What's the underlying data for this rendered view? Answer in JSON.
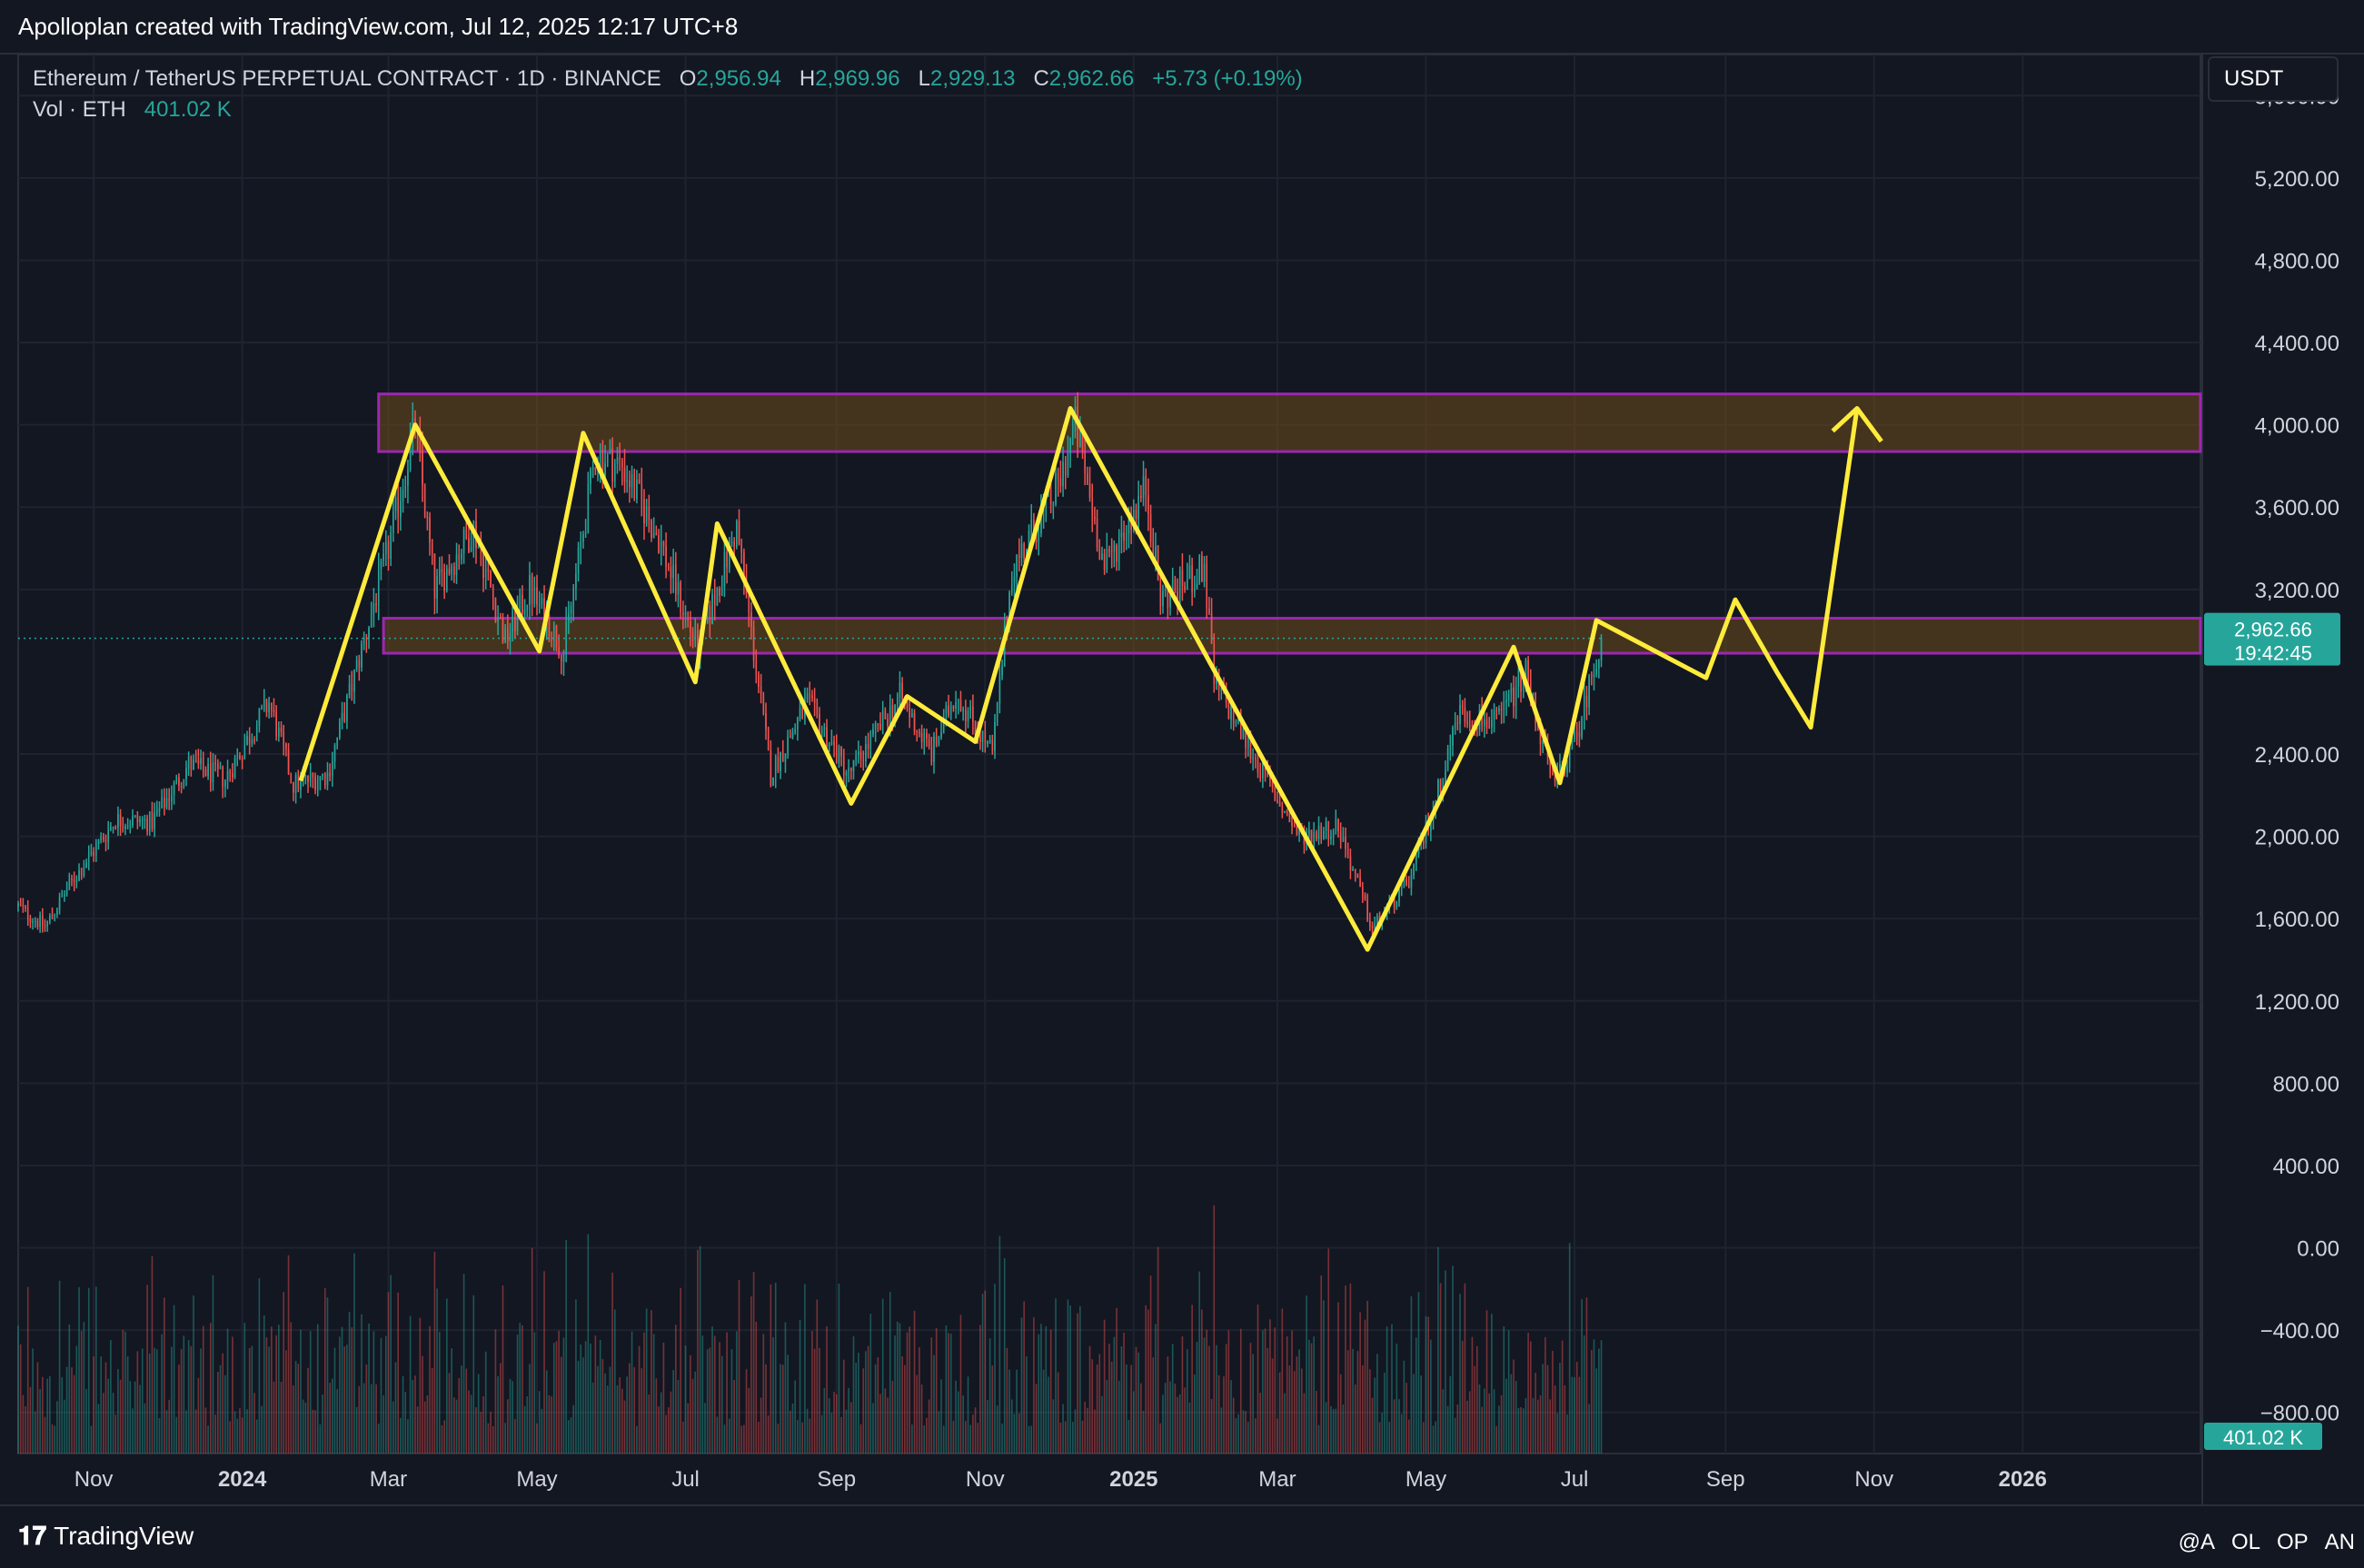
{
  "header": {
    "credit": "Apolloplan created with TradingView.com, Jul 12, 2025 12:17 UTC+8"
  },
  "legend": {
    "symbol": "Ethereum / TetherUS PERPETUAL CONTRACT · 1D · BINANCE",
    "o_label": "O",
    "o_value": "2,956.94",
    "h_label": "H",
    "h_value": "2,969.96",
    "l_label": "L",
    "l_value": "2,929.13",
    "c_label": "C",
    "c_value": "2,962.66",
    "change": "+5.73 (+0.19%)",
    "vol_label": "Vol · ETH",
    "vol_value": "401.02 K"
  },
  "currency_button": "USDT",
  "price_badge": {
    "price": "2,962.66",
    "countdown": "19:42:45"
  },
  "volume_badge": "401.02 K",
  "footer": {
    "brand": "TradingView",
    "icons": [
      "@A",
      "OL",
      "OP",
      "AN"
    ]
  },
  "colors": {
    "up": "#26a69a",
    "down": "#ef5350",
    "annotation": "#ffeb3b",
    "zone_border": "#9c27b0",
    "zone_fill": "#6d4c1a"
  },
  "chart_data": {
    "type": "candlestick",
    "title": "Ethereum / TetherUS PERPETUAL CONTRACT · 1D · BINANCE",
    "y_ticks": [
      "5,600.00",
      "5,200.00",
      "4,800.00",
      "4,400.00",
      "4,000.00",
      "3,600.00",
      "3,200.00",
      "2,400.00",
      "2,000.00",
      "1,600.00",
      "1,200.00",
      "800.00",
      "400.00",
      "0.00",
      "−400.00",
      "−800.00"
    ],
    "y_tick_values": [
      5600,
      5200,
      4800,
      4400,
      4000,
      3600,
      3200,
      2400,
      2000,
      1600,
      1200,
      800,
      400,
      0,
      -400,
      -800
    ],
    "ylim": [
      -1000,
      5800
    ],
    "x_ticks": [
      {
        "label": "Nov",
        "date": "2023-11-01"
      },
      {
        "label": "2024",
        "date": "2024-01-01"
      },
      {
        "label": "Mar",
        "date": "2024-03-01"
      },
      {
        "label": "May",
        "date": "2024-05-01"
      },
      {
        "label": "Jul",
        "date": "2024-07-01"
      },
      {
        "label": "Sep",
        "date": "2024-09-01"
      },
      {
        "label": "Nov",
        "date": "2024-11-01"
      },
      {
        "label": "2025",
        "date": "2025-01-01"
      },
      {
        "label": "Mar",
        "date": "2025-03-01"
      },
      {
        "label": "May",
        "date": "2025-05-01"
      },
      {
        "label": "Jul",
        "date": "2025-07-01"
      },
      {
        "label": "Sep",
        "date": "2025-09-01"
      },
      {
        "label": "Nov",
        "date": "2025-11-01"
      },
      {
        "label": "2026",
        "date": "2026-01-01"
      }
    ],
    "xlim": [
      "2023-10-01",
      "2026-03-15"
    ],
    "last_date": "2025-07-12",
    "last_close": 2962.66,
    "price_path": [
      [
        "2023-10-01",
        1660
      ],
      [
        "2023-10-12",
        1560
      ],
      [
        "2023-10-23",
        1780
      ],
      [
        "2023-11-10",
        2080
      ],
      [
        "2023-11-25",
        2070
      ],
      [
        "2023-12-10",
        2350
      ],
      [
        "2023-12-25",
        2280
      ],
      [
        "2024-01-12",
        2650
      ],
      [
        "2024-01-22",
        2250
      ],
      [
        "2024-02-05",
        2300
      ],
      [
        "2024-02-20",
        2950
      ],
      [
        "2024-03-01",
        3400
      ],
      [
        "2024-03-12",
        4000
      ],
      [
        "2024-03-20",
        3200
      ],
      [
        "2024-04-05",
        3500
      ],
      [
        "2024-04-18",
        2950
      ],
      [
        "2024-04-28",
        3200
      ],
      [
        "2024-05-12",
        2900
      ],
      [
        "2024-05-25",
        3850
      ],
      [
        "2024-06-05",
        3800
      ],
      [
        "2024-06-20",
        3450
      ],
      [
        "2024-07-06",
        2900
      ],
      [
        "2024-07-22",
        3500
      ],
      [
        "2024-08-05",
        2300
      ],
      [
        "2024-08-20",
        2650
      ],
      [
        "2024-09-06",
        2300
      ],
      [
        "2024-09-27",
        2680
      ],
      [
        "2024-10-10",
        2400
      ],
      [
        "2024-10-20",
        2700
      ],
      [
        "2024-11-04",
        2400
      ],
      [
        "2024-11-12",
        3300
      ],
      [
        "2024-12-01",
        3700
      ],
      [
        "2024-12-08",
        4000
      ],
      [
        "2024-12-20",
        3300
      ],
      [
        "2025-01-06",
        3700
      ],
      [
        "2025-01-12",
        3150
      ],
      [
        "2025-01-30",
        3300
      ],
      [
        "2025-02-03",
        2750
      ],
      [
        "2025-02-28",
        2200
      ],
      [
        "2025-03-10",
        2000
      ],
      [
        "2025-03-26",
        2050
      ],
      [
        "2025-04-09",
        1550
      ],
      [
        "2025-04-25",
        1800
      ],
      [
        "2025-05-08",
        2300
      ],
      [
        "2025-05-14",
        2600
      ],
      [
        "2025-05-30",
        2550
      ],
      [
        "2025-06-11",
        2800
      ],
      [
        "2025-06-22",
        2250
      ],
      [
        "2025-07-01",
        2450
      ],
      [
        "2025-07-12",
        2962.66
      ]
    ],
    "volume_peak_labels": [
      "401.02 K"
    ],
    "annotations": {
      "zones": [
        {
          "top": 4150,
          "bottom": 3870,
          "from": "2024-02-26",
          "to": "2026-03-15"
        },
        {
          "top": 3060,
          "bottom": 2890,
          "from": "2024-02-28",
          "to": "2026-03-15"
        }
      ],
      "zigzag": [
        [
          "2024-01-25",
          2270
        ],
        [
          "2024-03-12",
          4000
        ],
        [
          "2024-05-02",
          2900
        ],
        [
          "2024-05-20",
          3960
        ],
        [
          "2024-07-05",
          2750
        ],
        [
          "2024-07-14",
          3520
        ],
        [
          "2024-09-07",
          2160
        ],
        [
          "2024-09-30",
          2680
        ],
        [
          "2024-10-28",
          2460
        ],
        [
          "2024-12-06",
          4080
        ],
        [
          "2025-04-07",
          1450
        ],
        [
          "2025-06-06",
          2920
        ],
        [
          "2025-06-25",
          2260
        ],
        [
          "2025-07-10",
          3050
        ],
        [
          "2025-08-24",
          2770
        ],
        [
          "2025-09-05",
          3150
        ],
        [
          "2025-09-22",
          2800
        ],
        [
          "2025-10-06",
          2530
        ],
        [
          "2025-10-25",
          4080
        ]
      ],
      "arrow_head": [
        [
          "2025-10-15",
          3970
        ],
        [
          "2025-10-25",
          4080
        ],
        [
          "2025-11-04",
          3920
        ]
      ]
    }
  }
}
